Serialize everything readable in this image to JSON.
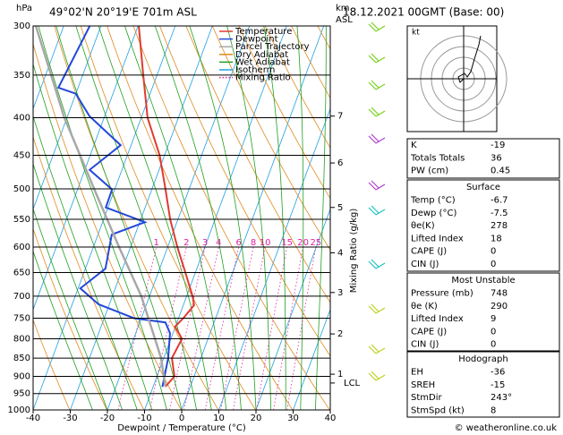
{
  "header": {
    "title": "49°02'N  20°19'E  701m  ASL",
    "date": "18.12.2021  00GMT  (Base: 00)"
  },
  "chart_data": {
    "type": "skewt",
    "y_unit": "hPa",
    "km_label": "km",
    "asl_label": "ASL",
    "xlabel": "Dewpoint / Temperature (°C)",
    "mixing_label": "Mixing Ratio (g/kg)",
    "xlim": [
      -40,
      40
    ],
    "xticks": [
      -40,
      -30,
      -20,
      -10,
      0,
      10,
      20,
      30,
      40
    ],
    "ylim": [
      1000,
      300
    ],
    "yticks": [
      300,
      350,
      400,
      450,
      500,
      550,
      600,
      650,
      700,
      750,
      800,
      850,
      900,
      950,
      1000
    ],
    "y_scale": "log",
    "km_ticks": [
      {
        "km": 7,
        "pressure": 398
      },
      {
        "km": 6,
        "pressure": 461
      },
      {
        "km": 5,
        "pressure": 530
      },
      {
        "km": 4,
        "pressure": 611
      },
      {
        "km": 3,
        "pressure": 692
      },
      {
        "km": 2,
        "pressure": 788
      },
      {
        "km": 1,
        "pressure": 894
      }
    ],
    "lcl": {
      "label": "LCL",
      "pressure": 919
    },
    "mixing_ratios": [
      1,
      2,
      3,
      4,
      6,
      8,
      10,
      15,
      20,
      25
    ],
    "series": [
      {
        "name": "Temperature",
        "color": "#e03a30",
        "pressure": [
          300,
          350,
          400,
          450,
          500,
          550,
          600,
          650,
          700,
          720,
          750,
          770,
          800,
          850,
          900,
          930
        ],
        "values": [
          -49.8,
          -43.7,
          -38.3,
          -31.3,
          -26.4,
          -22.1,
          -17.4,
          -12.7,
          -8.4,
          -7.1,
          -8.7,
          -10.1,
          -7.0,
          -7.8,
          -5.3,
          -6.7
        ]
      },
      {
        "name": "Dewpoint",
        "color": "#2448d8",
        "pressure": [
          300,
          364,
          371,
          398,
          436,
          471,
          501,
          530,
          555,
          577,
          642,
          683,
          718,
          750,
          760,
          786,
          850,
          930
        ],
        "values": [
          -63.0,
          -65.3,
          -60.0,
          -54.1,
          -42.8,
          -48.7,
          -40.7,
          -40.6,
          -28.6,
          -36.3,
          -34.6,
          -39.4,
          -32.9,
          -22.0,
          -13.1,
          -10.8,
          -8.8,
          -7.5
        ]
      },
      {
        "name": "Parcel Trajectory",
        "color": "#a8a8a8",
        "pressure": [
          930,
          850,
          700,
          600,
          500,
          400,
          300
        ],
        "values": [
          -6.7,
          -10.7,
          -22.2,
          -33.1,
          -45.6,
          -60.7,
          -77.5
        ]
      }
    ],
    "background": [
      {
        "name": "Dry Adiabat",
        "color": "#e08a20"
      },
      {
        "name": "Wet Adiabat",
        "color": "#20a020"
      },
      {
        "name": "Isotherm",
        "color": "#20a0e0"
      },
      {
        "name": "Mixing Ratio",
        "color": "#e020a0"
      }
    ]
  },
  "hodograph": {
    "unit": "kt"
  },
  "indices": {
    "top": [
      [
        "K",
        -19
      ],
      [
        "Totals Totals",
        36
      ],
      [
        "PW (cm)",
        0.45
      ]
    ],
    "surface": {
      "heading": "Surface",
      "rows": [
        [
          "Temp (°C)",
          -6.7
        ],
        [
          "Dewp (°C)",
          -7.5
        ],
        [
          "θe(K)",
          278
        ],
        [
          "Lifted Index",
          18
        ],
        [
          "CAPE (J)",
          0
        ],
        [
          "CIN (J)",
          0
        ]
      ]
    },
    "most_unstable": {
      "heading": "Most Unstable",
      "rows": [
        [
          "Pressure (mb)",
          748
        ],
        [
          "θe (K)",
          290
        ],
        [
          "Lifted Index",
          9
        ],
        [
          "CAPE (J)",
          0
        ],
        [
          "CIN (J)",
          0
        ]
      ]
    },
    "hodograph": {
      "heading": "Hodograph",
      "rows": [
        [
          "EH",
          -36
        ],
        [
          "SREH",
          -15
        ],
        [
          "StmDir",
          "243°"
        ],
        [
          "StmSpd (kt)",
          8
        ]
      ]
    }
  },
  "footer": "© weatheronline.co.uk"
}
